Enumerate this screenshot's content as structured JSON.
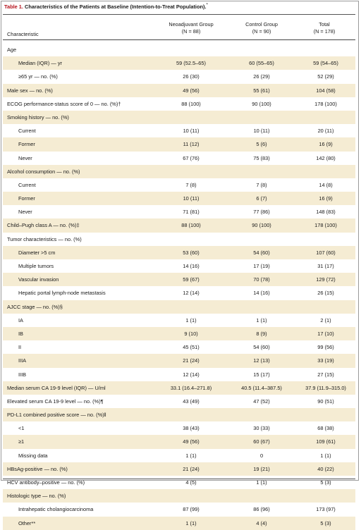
{
  "table": {
    "label": "Table 1.",
    "title": " Characteristics of the Patients at Baseline (Intention-to-Treat Population).",
    "title_mark": "*",
    "headers": {
      "characteristic": "Characteristic",
      "col1_line1": "Neoadjuvant Group",
      "col1_line2": "(N = 88)",
      "col2_line1": "Control Group",
      "col2_line2": "(N = 90)",
      "col3_line1": "Total",
      "col3_line2": "(N = 178)"
    },
    "rows": [
      {
        "label": "Age",
        "c1": "",
        "c2": "",
        "c3": "",
        "indent": false
      },
      {
        "label": "Median (IQR) — yr",
        "c1": "59 (52.5–65)",
        "c2": "60 (55–65)",
        "c3": "59 (54–65)",
        "indent": true
      },
      {
        "label": "≥65 yr — no. (%)",
        "c1": "26 (30)",
        "c2": "26 (29)",
        "c3": "52 (29)",
        "indent": true
      },
      {
        "label": "Male sex — no. (%)",
        "c1": "49 (56)",
        "c2": "55 (61)",
        "c3": "104 (58)",
        "indent": false
      },
      {
        "label": "ECOG performance-status score of 0 — no. (%)†",
        "c1": "88 (100)",
        "c2": "90 (100)",
        "c3": "178 (100)",
        "indent": false
      },
      {
        "label": "Smoking history — no. (%)",
        "c1": "",
        "c2": "",
        "c3": "",
        "indent": false
      },
      {
        "label": "Current",
        "c1": "10 (11)",
        "c2": "10 (11)",
        "c3": "20 (11)",
        "indent": true
      },
      {
        "label": "Former",
        "c1": "11 (12)",
        "c2": "5 (6)",
        "c3": "16 (9)",
        "indent": true
      },
      {
        "label": "Never",
        "c1": "67 (76)",
        "c2": "75 (83)",
        "c3": "142 (80)",
        "indent": true
      },
      {
        "label": "Alcohol consumption — no. (%)",
        "c1": "",
        "c2": "",
        "c3": "",
        "indent": false
      },
      {
        "label": "Current",
        "c1": "7 (8)",
        "c2": "7 (8)",
        "c3": "14 (8)",
        "indent": true
      },
      {
        "label": "Former",
        "c1": "10 (11)",
        "c2": "6 (7)",
        "c3": "16 (9)",
        "indent": true
      },
      {
        "label": "Never",
        "c1": "71 (81)",
        "c2": "77 (86)",
        "c3": "148 (83)",
        "indent": true
      },
      {
        "label": "Child–Pugh class A — no. (%)‡",
        "c1": "88 (100)",
        "c2": "90 (100)",
        "c3": "178 (100)",
        "indent": false
      },
      {
        "label": "Tumor characteristics — no. (%)",
        "c1": "",
        "c2": "",
        "c3": "",
        "indent": false
      },
      {
        "label": "Diameter >5 cm",
        "c1": "53 (60)",
        "c2": "54 (60)",
        "c3": "107 (60)",
        "indent": true
      },
      {
        "label": "Multiple tumors",
        "c1": "14 (16)",
        "c2": "17 (19)",
        "c3": "31 (17)",
        "indent": true
      },
      {
        "label": "Vascular invasion",
        "c1": "59 (67)",
        "c2": "70 (78)",
        "c3": "129 (72)",
        "indent": true
      },
      {
        "label": "Hepatic portal lymph-node metastasis",
        "c1": "12 (14)",
        "c2": "14 (16)",
        "c3": "26 (15)",
        "indent": true
      },
      {
        "label": "AJCC stage — no. (%)§",
        "c1": "",
        "c2": "",
        "c3": "",
        "indent": false
      },
      {
        "label": "IA",
        "c1": "1 (1)",
        "c2": "1 (1)",
        "c3": "2 (1)",
        "indent": true
      },
      {
        "label": "IB",
        "c1": "9 (10)",
        "c2": "8 (9)",
        "c3": "17 (10)",
        "indent": true
      },
      {
        "label": "II",
        "c1": "45 (51)",
        "c2": "54 (60)",
        "c3": "99 (56)",
        "indent": true
      },
      {
        "label": "IIIA",
        "c1": "21 (24)",
        "c2": "12 (13)",
        "c3": "33 (19)",
        "indent": true
      },
      {
        "label": "IIIB",
        "c1": "12 (14)",
        "c2": "15 (17)",
        "c3": "27 (15)",
        "indent": true
      },
      {
        "label": "Median serum CA 19-9 level (IQR) — U/ml",
        "c1": "33.1 (16.4–271.8)",
        "c2": "40.5 (11.4–387.5)",
        "c3": "37.9 (11.9–315.0)",
        "indent": false
      },
      {
        "label": "Elevated serum CA 19-9 level — no. (%)¶",
        "c1": "43 (49)",
        "c2": "47 (52)",
        "c3": "90 (51)",
        "indent": false
      },
      {
        "label": "PD-L1 combined positive score — no. (%)‖",
        "c1": "",
        "c2": "",
        "c3": "",
        "indent": false
      },
      {
        "label": "<1",
        "c1": "38 (43)",
        "c2": "30 (33)",
        "c3": "68 (38)",
        "indent": true
      },
      {
        "label": "≥1",
        "c1": "49 (56)",
        "c2": "60 (67)",
        "c3": "109 (61)",
        "indent": true
      },
      {
        "label": "Missing data",
        "c1": "1 (1)",
        "c2": "0",
        "c3": "1 (1)",
        "indent": true
      },
      {
        "label": "HBsAg-positive — no. (%)",
        "c1": "21 (24)",
        "c2": "19 (21)",
        "c3": "40 (22)",
        "indent": false
      },
      {
        "label": "HCV antibody–positive — no. (%)",
        "c1": "4 (5)",
        "c2": "1 (1)",
        "c3": "5 (3)",
        "indent": false
      },
      {
        "label": "Histologic type — no. (%)",
        "c1": "",
        "c2": "",
        "c3": "",
        "indent": false
      },
      {
        "label": "Intrahepatic cholangiocarcinoma",
        "c1": "87 (99)",
        "c2": "86 (96)",
        "c3": "173 (97)",
        "indent": true
      },
      {
        "label": "Other**",
        "c1": "1 (1)",
        "c2": "4 (4)",
        "c3": "5 (3)",
        "indent": true
      }
    ]
  },
  "colors": {
    "label_red": "#b5121b",
    "row_shade": "#f5ecd3",
    "rule": "#555555"
  }
}
